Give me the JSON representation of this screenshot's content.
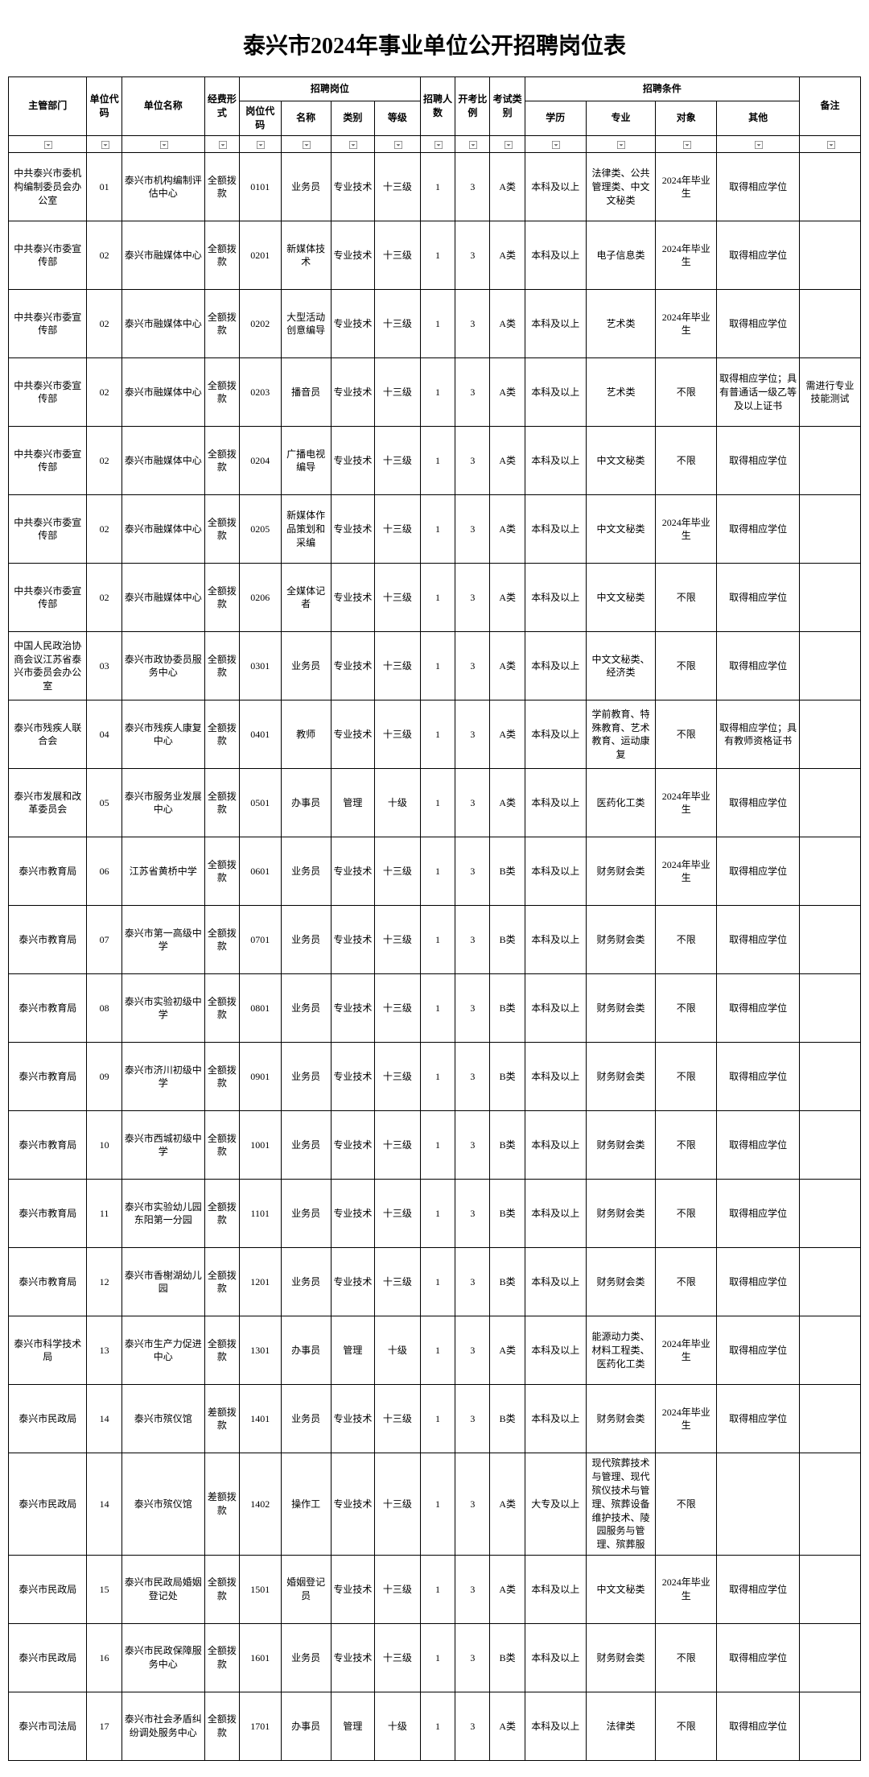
{
  "title": "泰兴市2024年事业单位公开招聘岗位表",
  "headers": {
    "dept": "主管部门",
    "unitcode": "单位代码",
    "unitname": "单位名称",
    "fund": "经费形式",
    "posgroup": "招聘岗位",
    "poscode": "岗位代码",
    "posname": "名称",
    "postype": "类别",
    "poslevel": "等级",
    "count": "招聘人数",
    "ratio": "开考比例",
    "examtype": "考试类别",
    "condgroup": "招聘条件",
    "edu": "学历",
    "major": "专业",
    "target": "对象",
    "other": "其他",
    "remark": "备注"
  },
  "rows": [
    {
      "dept": "中共泰兴市委机构编制委员会办公室",
      "unitcode": "01",
      "unitname": "泰兴市机构编制评估中心",
      "fund": "全额拨款",
      "poscode": "0101",
      "posname": "业务员",
      "postype": "专业技术",
      "poslevel": "十三级",
      "count": "1",
      "ratio": "3",
      "examtype": "A类",
      "edu": "本科及以上",
      "major": "法律类、公共管理类、中文文秘类",
      "target": "2024年毕业生",
      "other": "取得相应学位",
      "remark": ""
    },
    {
      "dept": "中共泰兴市委宣传部",
      "unitcode": "02",
      "unitname": "泰兴市融媒体中心",
      "fund": "全额拨款",
      "poscode": "0201",
      "posname": "新媒体技术",
      "postype": "专业技术",
      "poslevel": "十三级",
      "count": "1",
      "ratio": "3",
      "examtype": "A类",
      "edu": "本科及以上",
      "major": "电子信息类",
      "target": "2024年毕业生",
      "other": "取得相应学位",
      "remark": ""
    },
    {
      "dept": "中共泰兴市委宣传部",
      "unitcode": "02",
      "unitname": "泰兴市融媒体中心",
      "fund": "全额拨款",
      "poscode": "0202",
      "posname": "大型活动创意编导",
      "postype": "专业技术",
      "poslevel": "十三级",
      "count": "1",
      "ratio": "3",
      "examtype": "A类",
      "edu": "本科及以上",
      "major": "艺术类",
      "target": "2024年毕业生",
      "other": "取得相应学位",
      "remark": ""
    },
    {
      "dept": "中共泰兴市委宣传部",
      "unitcode": "02",
      "unitname": "泰兴市融媒体中心",
      "fund": "全额拨款",
      "poscode": "0203",
      "posname": "播音员",
      "postype": "专业技术",
      "poslevel": "十三级",
      "count": "1",
      "ratio": "3",
      "examtype": "A类",
      "edu": "本科及以上",
      "major": "艺术类",
      "target": "不限",
      "other": "取得相应学位；具有普通话一级乙等及以上证书",
      "remark": "需进行专业技能测试"
    },
    {
      "dept": "中共泰兴市委宣传部",
      "unitcode": "02",
      "unitname": "泰兴市融媒体中心",
      "fund": "全额拨款",
      "poscode": "0204",
      "posname": "广播电视编导",
      "postype": "专业技术",
      "poslevel": "十三级",
      "count": "1",
      "ratio": "3",
      "examtype": "A类",
      "edu": "本科及以上",
      "major": "中文文秘类",
      "target": "不限",
      "other": "取得相应学位",
      "remark": ""
    },
    {
      "dept": "中共泰兴市委宣传部",
      "unitcode": "02",
      "unitname": "泰兴市融媒体中心",
      "fund": "全额拨款",
      "poscode": "0205",
      "posname": "新媒体作品策划和采编",
      "postype": "专业技术",
      "poslevel": "十三级",
      "count": "1",
      "ratio": "3",
      "examtype": "A类",
      "edu": "本科及以上",
      "major": "中文文秘类",
      "target": "2024年毕业生",
      "other": "取得相应学位",
      "remark": ""
    },
    {
      "dept": "中共泰兴市委宣传部",
      "unitcode": "02",
      "unitname": "泰兴市融媒体中心",
      "fund": "全额拨款",
      "poscode": "0206",
      "posname": "全媒体记者",
      "postype": "专业技术",
      "poslevel": "十三级",
      "count": "1",
      "ratio": "3",
      "examtype": "A类",
      "edu": "本科及以上",
      "major": "中文文秘类",
      "target": "不限",
      "other": "取得相应学位",
      "remark": ""
    },
    {
      "dept": "中国人民政治协商会议江苏省泰兴市委员会办公室",
      "unitcode": "03",
      "unitname": "泰兴市政协委员服务中心",
      "fund": "全额拨款",
      "poscode": "0301",
      "posname": "业务员",
      "postype": "专业技术",
      "poslevel": "十三级",
      "count": "1",
      "ratio": "3",
      "examtype": "A类",
      "edu": "本科及以上",
      "major": "中文文秘类、经济类",
      "target": "不限",
      "other": "取得相应学位",
      "remark": ""
    },
    {
      "dept": "泰兴市残疾人联合会",
      "unitcode": "04",
      "unitname": "泰兴市残疾人康复中心",
      "fund": "全额拨款",
      "poscode": "0401",
      "posname": "教师",
      "postype": "专业技术",
      "poslevel": "十三级",
      "count": "1",
      "ratio": "3",
      "examtype": "A类",
      "edu": "本科及以上",
      "major": "学前教育、特殊教育、艺术教育、运动康复",
      "target": "不限",
      "other": "取得相应学位；具有教师资格证书",
      "remark": ""
    },
    {
      "dept": "泰兴市发展和改革委员会",
      "unitcode": "05",
      "unitname": "泰兴市服务业发展中心",
      "fund": "全额拨款",
      "poscode": "0501",
      "posname": "办事员",
      "postype": "管理",
      "poslevel": "十级",
      "count": "1",
      "ratio": "3",
      "examtype": "A类",
      "edu": "本科及以上",
      "major": "医药化工类",
      "target": "2024年毕业生",
      "other": "取得相应学位",
      "remark": ""
    },
    {
      "dept": "泰兴市教育局",
      "unitcode": "06",
      "unitname": "江苏省黄桥中学",
      "fund": "全额拨款",
      "poscode": "0601",
      "posname": "业务员",
      "postype": "专业技术",
      "poslevel": "十三级",
      "count": "1",
      "ratio": "3",
      "examtype": "B类",
      "edu": "本科及以上",
      "major": "财务财会类",
      "target": "2024年毕业生",
      "other": "取得相应学位",
      "remark": ""
    },
    {
      "dept": "泰兴市教育局",
      "unitcode": "07",
      "unitname": "泰兴市第一高级中学",
      "fund": "全额拨款",
      "poscode": "0701",
      "posname": "业务员",
      "postype": "专业技术",
      "poslevel": "十三级",
      "count": "1",
      "ratio": "3",
      "examtype": "B类",
      "edu": "本科及以上",
      "major": "财务财会类",
      "target": "不限",
      "other": "取得相应学位",
      "remark": ""
    },
    {
      "dept": "泰兴市教育局",
      "unitcode": "08",
      "unitname": "泰兴市实验初级中学",
      "fund": "全额拨款",
      "poscode": "0801",
      "posname": "业务员",
      "postype": "专业技术",
      "poslevel": "十三级",
      "count": "1",
      "ratio": "3",
      "examtype": "B类",
      "edu": "本科及以上",
      "major": "财务财会类",
      "target": "不限",
      "other": "取得相应学位",
      "remark": ""
    },
    {
      "dept": "泰兴市教育局",
      "unitcode": "09",
      "unitname": "泰兴市济川初级中学",
      "fund": "全额拨款",
      "poscode": "0901",
      "posname": "业务员",
      "postype": "专业技术",
      "poslevel": "十三级",
      "count": "1",
      "ratio": "3",
      "examtype": "B类",
      "edu": "本科及以上",
      "major": "财务财会类",
      "target": "不限",
      "other": "取得相应学位",
      "remark": ""
    },
    {
      "dept": "泰兴市教育局",
      "unitcode": "10",
      "unitname": "泰兴市西城初级中学",
      "fund": "全额拨款",
      "poscode": "1001",
      "posname": "业务员",
      "postype": "专业技术",
      "poslevel": "十三级",
      "count": "1",
      "ratio": "3",
      "examtype": "B类",
      "edu": "本科及以上",
      "major": "财务财会类",
      "target": "不限",
      "other": "取得相应学位",
      "remark": ""
    },
    {
      "dept": "泰兴市教育局",
      "unitcode": "11",
      "unitname": "泰兴市实验幼儿园东阳第一分园",
      "fund": "全额拨款",
      "poscode": "1101",
      "posname": "业务员",
      "postype": "专业技术",
      "poslevel": "十三级",
      "count": "1",
      "ratio": "3",
      "examtype": "B类",
      "edu": "本科及以上",
      "major": "财务财会类",
      "target": "不限",
      "other": "取得相应学位",
      "remark": ""
    },
    {
      "dept": "泰兴市教育局",
      "unitcode": "12",
      "unitname": "泰兴市香榭湖幼儿园",
      "fund": "全额拨款",
      "poscode": "1201",
      "posname": "业务员",
      "postype": "专业技术",
      "poslevel": "十三级",
      "count": "1",
      "ratio": "3",
      "examtype": "B类",
      "edu": "本科及以上",
      "major": "财务财会类",
      "target": "不限",
      "other": "取得相应学位",
      "remark": ""
    },
    {
      "dept": "泰兴市科学技术局",
      "unitcode": "13",
      "unitname": "泰兴市生产力促进中心",
      "fund": "全额拨款",
      "poscode": "1301",
      "posname": "办事员",
      "postype": "管理",
      "poslevel": "十级",
      "count": "1",
      "ratio": "3",
      "examtype": "A类",
      "edu": "本科及以上",
      "major": "能源动力类、材料工程类、医药化工类",
      "target": "2024年毕业生",
      "other": "取得相应学位",
      "remark": ""
    },
    {
      "dept": "泰兴市民政局",
      "unitcode": "14",
      "unitname": "泰兴市殡仪馆",
      "fund": "差额拨款",
      "poscode": "1401",
      "posname": "业务员",
      "postype": "专业技术",
      "poslevel": "十三级",
      "count": "1",
      "ratio": "3",
      "examtype": "B类",
      "edu": "本科及以上",
      "major": "财务财会类",
      "target": "2024年毕业生",
      "other": "取得相应学位",
      "remark": ""
    },
    {
      "dept": "泰兴市民政局",
      "unitcode": "14",
      "unitname": "泰兴市殡仪馆",
      "fund": "差额拨款",
      "poscode": "1402",
      "posname": "操作工",
      "postype": "专业技术",
      "poslevel": "十三级",
      "count": "1",
      "ratio": "3",
      "examtype": "A类",
      "edu": "大专及以上",
      "major": "现代殡葬技术与管理、现代殡仪技术与管理、殡葬设备维护技术、陵园服务与管理、殡葬服",
      "target": "不限",
      "other": "",
      "remark": ""
    },
    {
      "dept": "泰兴市民政局",
      "unitcode": "15",
      "unitname": "泰兴市民政局婚姻登记处",
      "fund": "全额拨款",
      "poscode": "1501",
      "posname": "婚姻登记员",
      "postype": "专业技术",
      "poslevel": "十三级",
      "count": "1",
      "ratio": "3",
      "examtype": "A类",
      "edu": "本科及以上",
      "major": "中文文秘类",
      "target": "2024年毕业生",
      "other": "取得相应学位",
      "remark": ""
    },
    {
      "dept": "泰兴市民政局",
      "unitcode": "16",
      "unitname": "泰兴市民政保障服务中心",
      "fund": "全额拨款",
      "poscode": "1601",
      "posname": "业务员",
      "postype": "专业技术",
      "poslevel": "十三级",
      "count": "1",
      "ratio": "3",
      "examtype": "B类",
      "edu": "本科及以上",
      "major": "财务财会类",
      "target": "不限",
      "other": "取得相应学位",
      "remark": ""
    },
    {
      "dept": "泰兴市司法局",
      "unitcode": "17",
      "unitname": "泰兴市社会矛盾纠纷调处服务中心",
      "fund": "全额拨款",
      "poscode": "1701",
      "posname": "办事员",
      "postype": "管理",
      "poslevel": "十级",
      "count": "1",
      "ratio": "3",
      "examtype": "A类",
      "edu": "本科及以上",
      "major": "法律类",
      "target": "不限",
      "other": "取得相应学位",
      "remark": ""
    }
  ]
}
